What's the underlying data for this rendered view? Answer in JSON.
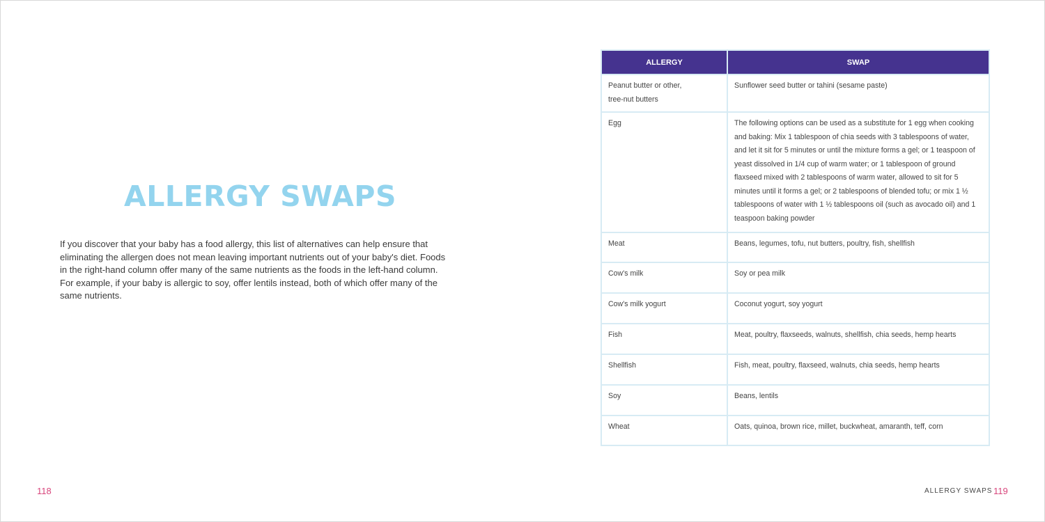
{
  "left_page": {
    "title": "ALLERGY SWAPS",
    "intro": "If you discover that your baby has a food allergy, this list of alternatives can help ensure that eliminating the allergen does not mean leaving important nutrients out of your baby's diet. Foods in the right-hand column offer many of the same nutrients as the foods in the left-hand column. For example, if your baby is allergic to soy, offer lentils instead, both of which offer many of the same nutrients.",
    "page_number": "118"
  },
  "right_page": {
    "running_head": "ALLERGY SWAPS",
    "page_number": "119",
    "table": {
      "headers": [
        "ALLERGY",
        "SWAP"
      ],
      "rows": [
        {
          "allergy": "Peanut butter or other, tree-nut butters",
          "swap": "Sunflower seed butter or tahini (sesame paste)"
        },
        {
          "allergy": "Egg",
          "swap": "The following options can be used as a substitute for 1 egg when cooking and baking: Mix 1 tablespoon of chia seeds with 3 tablespoons of water, and let it sit for 5 minutes or until the mixture forms a gel; or 1 teaspoon of yeast dissolved in 1/4 cup of warm water; or 1 tablespoon of ground flaxseed mixed with 2 tablespoons of warm water, allowed to sit for 5 minutes until it forms a gel; or 2 tablespoons of blended tofu; or mix 1 ½ tablespoons of water with 1 ½ tablespoons oil (such as avocado oil) and 1 teaspoon baking powder"
        },
        {
          "allergy": "Meat",
          "swap": "Beans, legumes, tofu, nut butters, poultry, fish, shellfish"
        },
        {
          "allergy": "Cow's milk",
          "swap": "Soy or pea milk"
        },
        {
          "allergy": "Cow's milk yogurt",
          "swap": "Coconut yogurt, soy yogurt"
        },
        {
          "allergy": "Fish",
          "swap": "Meat, poultry, flaxseeds, walnuts, shellfish, chia seeds, hemp hearts"
        },
        {
          "allergy": "Shellfish",
          "swap": "Fish, meat, poultry, flaxseed, walnuts, chia seeds, hemp hearts"
        },
        {
          "allergy": "Soy",
          "swap": "Beans, lentils"
        },
        {
          "allergy": "Wheat",
          "swap": "Oats, quinoa, brown rice, millet, buckwheat, amaranth, teff, corn"
        }
      ]
    }
  },
  "colors": {
    "header_bg": "#45338f",
    "title": "#93d4ee",
    "page_number": "#d8467c",
    "border": "#d7ebf4"
  }
}
